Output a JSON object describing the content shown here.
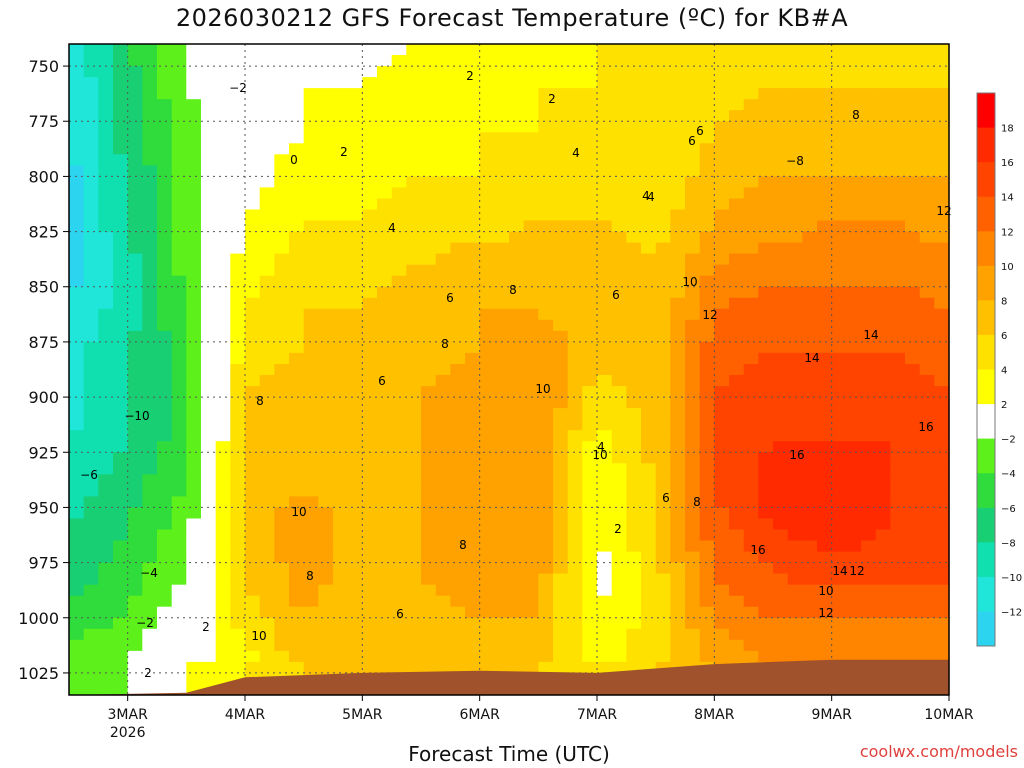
{
  "title": "2026030212 GFS Forecast Temperature (ºC) for KB#A",
  "x_axis_title": "Forecast Time (UTC)",
  "credit": "coolwx.com/models",
  "chart_data": {
    "type": "heatmap",
    "title": "2026030212 GFS Forecast Temperature (ºC) for KB#A",
    "xlabel": "Forecast Time (UTC)",
    "ylabel": "",
    "y_scale": "pressure (inverted, top = 740)",
    "ylim": [
      1035,
      740
    ],
    "xlim": [
      "2026-03-02 12:00",
      "2026-03-10 00:00"
    ],
    "y_ticks": [
      750,
      775,
      800,
      825,
      850,
      875,
      900,
      925,
      950,
      975,
      1000,
      1025
    ],
    "x_ticks": [
      {
        "label": "3MAR",
        "sublabel": "2026",
        "time": "2026-03-03 00:00"
      },
      {
        "label": "4MAR",
        "time": "2026-03-04 00:00"
      },
      {
        "label": "5MAR",
        "time": "2026-03-05 00:00"
      },
      {
        "label": "6MAR",
        "time": "2026-03-06 00:00"
      },
      {
        "label": "7MAR",
        "time": "2026-03-07 00:00"
      },
      {
        "label": "8MAR",
        "time": "2026-03-08 00:00"
      },
      {
        "label": "9MAR",
        "time": "2026-03-09 00:00"
      },
      {
        "label": "10MAR",
        "time": "2026-03-10 00:00"
      }
    ],
    "grid": true,
    "legend": "colorbar-right",
    "colorbar": [
      {
        "from": -14,
        "to": -12,
        "color": "#2dd4f0"
      },
      {
        "from": -12,
        "to": -10,
        "color": "#1fe6d8"
      },
      {
        "from": -10,
        "to": -8,
        "color": "#10dfb0"
      },
      {
        "from": -8,
        "to": -6,
        "color": "#18cf74"
      },
      {
        "from": -6,
        "to": -4,
        "color": "#2fdc3c"
      },
      {
        "from": -4,
        "to": -2,
        "color": "#5ef01a"
      },
      {
        "from": -2,
        "to": 2,
        "color": "#ffffff"
      },
      {
        "from": 2,
        "to": 4,
        "color": "#ffff00"
      },
      {
        "from": 4,
        "to": 6,
        "color": "#ffe100"
      },
      {
        "from": 6,
        "to": 8,
        "color": "#ffc000"
      },
      {
        "from": 8,
        "to": 10,
        "color": "#ffa200"
      },
      {
        "from": 10,
        "to": 12,
        "color": "#ff8400"
      },
      {
        "from": 12,
        "to": 14,
        "color": "#ff6000"
      },
      {
        "from": 14,
        "to": 16,
        "color": "#ff4400"
      },
      {
        "from": 16,
        "to": 18,
        "color": "#ff2a00"
      },
      {
        "from": 18,
        "to": 20,
        "color": "#ff0000"
      }
    ],
    "colorbar_ticks": [
      "18",
      "16",
      "14",
      "12",
      "10",
      "8",
      "6",
      "4",
      "2",
      "−2",
      "−4",
      "−6",
      "−8",
      "−10",
      "−12"
    ],
    "ground_color": "#a0522d",
    "temperature_samples": {
      "pressure": [
        740,
        760,
        780,
        800,
        820,
        840,
        860,
        880,
        900,
        920,
        940,
        960,
        980,
        1000,
        1020
      ],
      "times": [
        "2026-03-02 12",
        "2026-03-03 00",
        "2026-03-03 12",
        "2026-03-04 00",
        "2026-03-04 12",
        "2026-03-05 00",
        "2026-03-05 12",
        "2026-03-06 00",
        "2026-03-06 12",
        "2026-03-07 00",
        "2026-03-07 12",
        "2026-03-08 00",
        "2026-03-08 12",
        "2026-03-09 00",
        "2026-03-09 12",
        "2026-03-10 00"
      ],
      "values": [
        [
          -12,
          -6,
          -2,
          0,
          1,
          1,
          2,
          3,
          3,
          4,
          5,
          5,
          5,
          5,
          5,
          5
        ],
        [
          -12,
          -7,
          -2,
          0,
          2,
          2,
          3,
          3,
          4,
          4,
          5,
          5,
          6,
          6,
          6,
          6
        ],
        [
          -12,
          -7,
          -3,
          1,
          2,
          3,
          3,
          4,
          4,
          4,
          4,
          6,
          7,
          7,
          7,
          7
        ],
        [
          -13,
          -8,
          -3,
          1,
          3,
          3,
          4,
          4,
          5,
          5,
          4,
          7,
          8,
          8,
          8,
          8
        ],
        [
          -13,
          -8,
          -3,
          2,
          4,
          4,
          5,
          5,
          6,
          6,
          5,
          8,
          9,
          10,
          10,
          9
        ],
        [
          -13,
          -9,
          -3,
          3,
          5,
          5,
          6,
          7,
          7,
          7,
          6,
          10,
          11,
          11,
          11,
          11
        ],
        [
          -12,
          -9,
          -4,
          4,
          6,
          6,
          7,
          8,
          8,
          7,
          6,
          12,
          13,
          13,
          13,
          12
        ],
        [
          -11,
          -8,
          -5,
          5,
          6,
          6,
          7,
          8,
          9,
          7,
          7,
          13,
          14,
          14,
          14,
          13
        ],
        [
          -11,
          -8,
          -5,
          6,
          7,
          7,
          8,
          9,
          10,
          5,
          7,
          14,
          15,
          15,
          15,
          14
        ],
        [
          -10,
          -8,
          -5,
          6,
          7,
          7,
          8,
          9,
          10,
          3,
          7,
          14,
          16,
          16,
          16,
          15
        ],
        [
          -9,
          -7,
          -4,
          7,
          8,
          7,
          8,
          9,
          10,
          2,
          6,
          14,
          17,
          17,
          16,
          15
        ],
        [
          -8,
          -6,
          -3,
          7,
          9,
          7,
          8,
          9,
          10,
          2,
          6,
          13,
          16,
          17,
          16,
          16
        ],
        [
          -7,
          -5,
          -2,
          6,
          9,
          7,
          8,
          9,
          9,
          1,
          5,
          12,
          14,
          15,
          15,
          15
        ],
        [
          -5,
          -4,
          0,
          5,
          8,
          6,
          7,
          8,
          8,
          2,
          5,
          10,
          12,
          12,
          12,
          12
        ],
        [
          -3,
          -2,
          1,
          3,
          7,
          6,
          7,
          7,
          7,
          3,
          5,
          9,
          10,
          10,
          10,
          10
        ]
      ]
    },
    "surface_pressure": {
      "times": [
        "2026-03-02 12",
        "2026-03-03 12",
        "2026-03-04 00",
        "2026-03-05 00",
        "2026-03-06 00",
        "2026-03-07 00",
        "2026-03-08 00",
        "2026-03-09 00",
        "2026-03-10 00"
      ],
      "values": [
        1035,
        1034,
        1027,
        1025,
        1024,
        1025,
        1021,
        1019,
        1019
      ]
    },
    "contour_labels": [
      "2",
      "2",
      "2",
      "0",
      "−2",
      "2",
      "4",
      "4",
      "4",
      "6",
      "6",
      "6",
      "6",
      "8",
      "8",
      "8",
      "8",
      "10",
      "10",
      "10",
      "10",
      "12",
      "12",
      "14",
      "14",
      "16",
      "16",
      "16",
      "14",
      "12",
      "10",
      "−8",
      "−10",
      "−6",
      "−4",
      "−2",
      "2",
      "2",
      "4",
      "4",
      "6",
      "6",
      "6",
      "8",
      "8",
      "8",
      "10",
      "12"
    ]
  }
}
